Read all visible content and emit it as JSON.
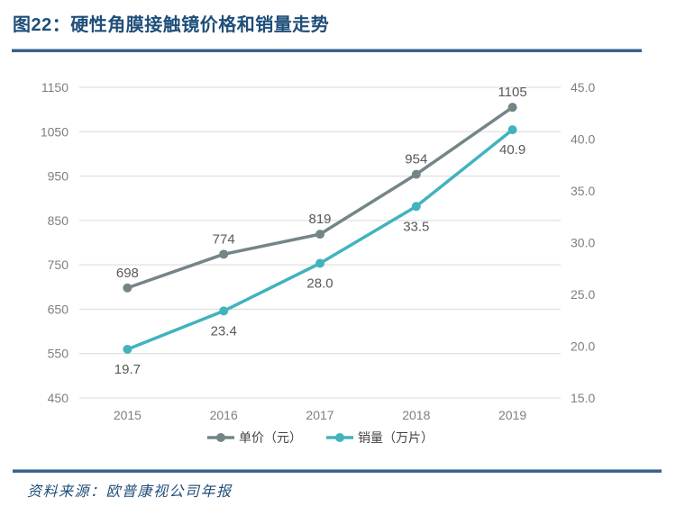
{
  "header": {
    "title": "图22：硬性角膜接触镜价格和销量走势"
  },
  "chart_data": {
    "type": "line",
    "title": "硬性角膜接触镜价格和销量走势",
    "categories": [
      "2015",
      "2016",
      "2017",
      "2018",
      "2019"
    ],
    "series": [
      {
        "name": "单价（元）",
        "axis": "left",
        "values": [
          698,
          774,
          819,
          954,
          1105
        ],
        "color": "#748587",
        "label_position": "above",
        "label_decimals": 0
      },
      {
        "name": "销量（万片）",
        "axis": "right",
        "values": [
          19.7,
          23.4,
          28.0,
          33.5,
          40.9
        ],
        "color": "#41b3bd",
        "label_position": "below",
        "label_decimals": 1
      }
    ],
    "left_axis": {
      "min": 450,
      "max": 1150,
      "step": 100,
      "decimals": 0
    },
    "right_axis": {
      "min": 15,
      "max": 45,
      "step": 5,
      "decimals": 1
    },
    "grid": true,
    "legend_position": "bottom",
    "colors": {
      "gridline": "#d9d9d9",
      "tick_label": "#7f7f7f",
      "data_label": "#595959"
    }
  },
  "footer": {
    "source": "资料来源：欧普康视公司年报"
  }
}
